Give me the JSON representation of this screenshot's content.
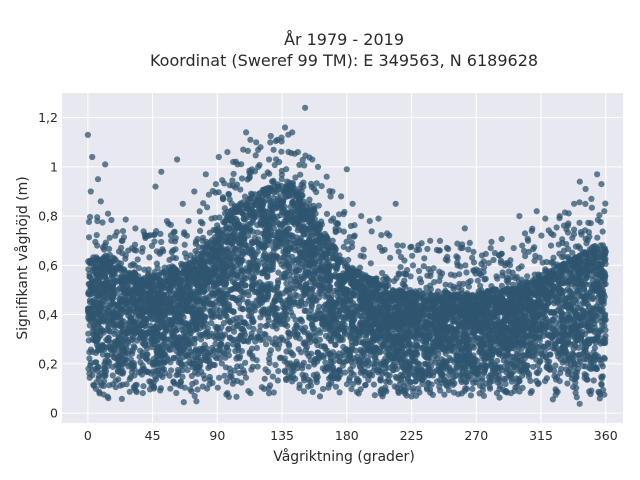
{
  "chart_data": {
    "type": "scatter",
    "title_line1": "År 1979 - 2019",
    "title_line2": "Koordinat (Sweref 99 TM): E 349563, N 6189628",
    "xlabel": "Vågriktning (grader)",
    "ylabel": "Signifikant våghöjd (m)",
    "xlim": [
      -18,
      372
    ],
    "ylim": [
      -0.04,
      1.3
    ],
    "x_ticks": [
      0,
      45,
      90,
      135,
      180,
      225,
      270,
      315,
      360
    ],
    "x_tick_labels": [
      "0",
      "45",
      "90",
      "135",
      "180",
      "225",
      "270",
      "315",
      "360"
    ],
    "y_ticks": [
      0,
      0.2,
      0.4,
      0.6,
      0.8,
      1.0,
      1.2
    ],
    "y_tick_labels": [
      "0",
      "0,2",
      "0,4",
      "0,6",
      "0,8",
      "1",
      "1,2"
    ],
    "grid": true,
    "colors": {
      "marker": "#2f5670",
      "plot_background": "#e8e8f0",
      "grid": "#ffffff"
    },
    "envelope_upper": [
      [
        0,
        0.62
      ],
      [
        15,
        0.62
      ],
      [
        30,
        0.55
      ],
      [
        45,
        0.55
      ],
      [
        60,
        0.58
      ],
      [
        75,
        0.62
      ],
      [
        90,
        0.72
      ],
      [
        100,
        0.82
      ],
      [
        115,
        0.88
      ],
      [
        130,
        0.92
      ],
      [
        140,
        0.92
      ],
      [
        150,
        0.86
      ],
      [
        165,
        0.72
      ],
      [
        180,
        0.6
      ],
      [
        195,
        0.55
      ],
      [
        210,
        0.5
      ],
      [
        225,
        0.48
      ],
      [
        240,
        0.48
      ],
      [
        255,
        0.48
      ],
      [
        270,
        0.48
      ],
      [
        285,
        0.5
      ],
      [
        300,
        0.5
      ],
      [
        315,
        0.55
      ],
      [
        330,
        0.6
      ],
      [
        345,
        0.65
      ],
      [
        360,
        0.66
      ]
    ],
    "envelope_lower": [
      [
        0,
        0.03
      ],
      [
        45,
        0.04
      ],
      [
        90,
        0.04
      ],
      [
        135,
        0.04
      ],
      [
        180,
        0.05
      ],
      [
        225,
        0.05
      ],
      [
        270,
        0.05
      ],
      [
        315,
        0.05
      ],
      [
        360,
        0.03
      ]
    ],
    "outliers": [
      {
        "x": 0,
        "y": 1.13
      },
      {
        "x": 3,
        "y": 1.04
      },
      {
        "x": 12,
        "y": 1.01
      },
      {
        "x": 2,
        "y": 0.9
      },
      {
        "x": 7,
        "y": 0.95
      },
      {
        "x": 9,
        "y": 0.86
      },
      {
        "x": 14,
        "y": 0.81
      },
      {
        "x": 19,
        "y": 0.72
      },
      {
        "x": 24,
        "y": 0.7
      },
      {
        "x": 28,
        "y": 0.66
      },
      {
        "x": 33,
        "y": 0.75
      },
      {
        "x": 38,
        "y": 0.67
      },
      {
        "x": 42,
        "y": 0.72
      },
      {
        "x": 47,
        "y": 0.92
      },
      {
        "x": 51,
        "y": 0.98
      },
      {
        "x": 55,
        "y": 0.78
      },
      {
        "x": 58,
        "y": 0.7
      },
      {
        "x": 62,
        "y": 1.03
      },
      {
        "x": 66,
        "y": 0.85
      },
      {
        "x": 70,
        "y": 0.78
      },
      {
        "x": 74,
        "y": 0.9
      },
      {
        "x": 78,
        "y": 0.74
      },
      {
        "x": 82,
        "y": 0.97
      },
      {
        "x": 86,
        "y": 0.79
      },
      {
        "x": 89,
        "y": 0.93
      },
      {
        "x": 91,
        "y": 1.04
      },
      {
        "x": 94,
        "y": 0.87
      },
      {
        "x": 97,
        "y": 1.06
      },
      {
        "x": 101,
        "y": 1.02
      },
      {
        "x": 104,
        "y": 1.01
      },
      {
        "x": 108,
        "y": 1.07
      },
      {
        "x": 110,
        "y": 1.14
      },
      {
        "x": 113,
        "y": 1.11
      },
      {
        "x": 117,
        "y": 1.1
      },
      {
        "x": 120,
        "y": 1.08
      },
      {
        "x": 126,
        "y": 1.03
      },
      {
        "x": 133,
        "y": 1.02
      },
      {
        "x": 137,
        "y": 1.16
      },
      {
        "x": 142,
        "y": 1.14
      },
      {
        "x": 146,
        "y": 1.06
      },
      {
        "x": 151,
        "y": 1.24
      },
      {
        "x": 156,
        "y": 1.03
      },
      {
        "x": 160,
        "y": 1.0
      },
      {
        "x": 166,
        "y": 0.96
      },
      {
        "x": 170,
        "y": 0.9
      },
      {
        "x": 176,
        "y": 0.88
      },
      {
        "x": 180,
        "y": 0.99
      },
      {
        "x": 184,
        "y": 0.85
      },
      {
        "x": 190,
        "y": 0.8
      },
      {
        "x": 196,
        "y": 0.78
      },
      {
        "x": 202,
        "y": 0.79
      },
      {
        "x": 208,
        "y": 0.73
      },
      {
        "x": 214,
        "y": 0.85
      },
      {
        "x": 220,
        "y": 0.62
      },
      {
        "x": 226,
        "y": 0.6
      },
      {
        "x": 232,
        "y": 0.69
      },
      {
        "x": 238,
        "y": 0.7
      },
      {
        "x": 244,
        "y": 0.66
      },
      {
        "x": 250,
        "y": 0.62
      },
      {
        "x": 257,
        "y": 0.6
      },
      {
        "x": 262,
        "y": 0.75
      },
      {
        "x": 268,
        "y": 0.58
      },
      {
        "x": 274,
        "y": 0.64
      },
      {
        "x": 280,
        "y": 0.67
      },
      {
        "x": 286,
        "y": 0.64
      },
      {
        "x": 290,
        "y": 0.6
      },
      {
        "x": 296,
        "y": 0.67
      },
      {
        "x": 300,
        "y": 0.8
      },
      {
        "x": 306,
        "y": 0.7
      },
      {
        "x": 312,
        "y": 0.82
      },
      {
        "x": 318,
        "y": 0.79
      },
      {
        "x": 322,
        "y": 0.73
      },
      {
        "x": 328,
        "y": 0.8
      },
      {
        "x": 334,
        "y": 0.77
      },
      {
        "x": 338,
        "y": 0.85
      },
      {
        "x": 342,
        "y": 0.94
      },
      {
        "x": 346,
        "y": 0.91
      },
      {
        "x": 350,
        "y": 0.87
      },
      {
        "x": 354,
        "y": 0.97
      },
      {
        "x": 357,
        "y": 0.93
      },
      {
        "x": 359,
        "y": 0.82
      }
    ]
  }
}
